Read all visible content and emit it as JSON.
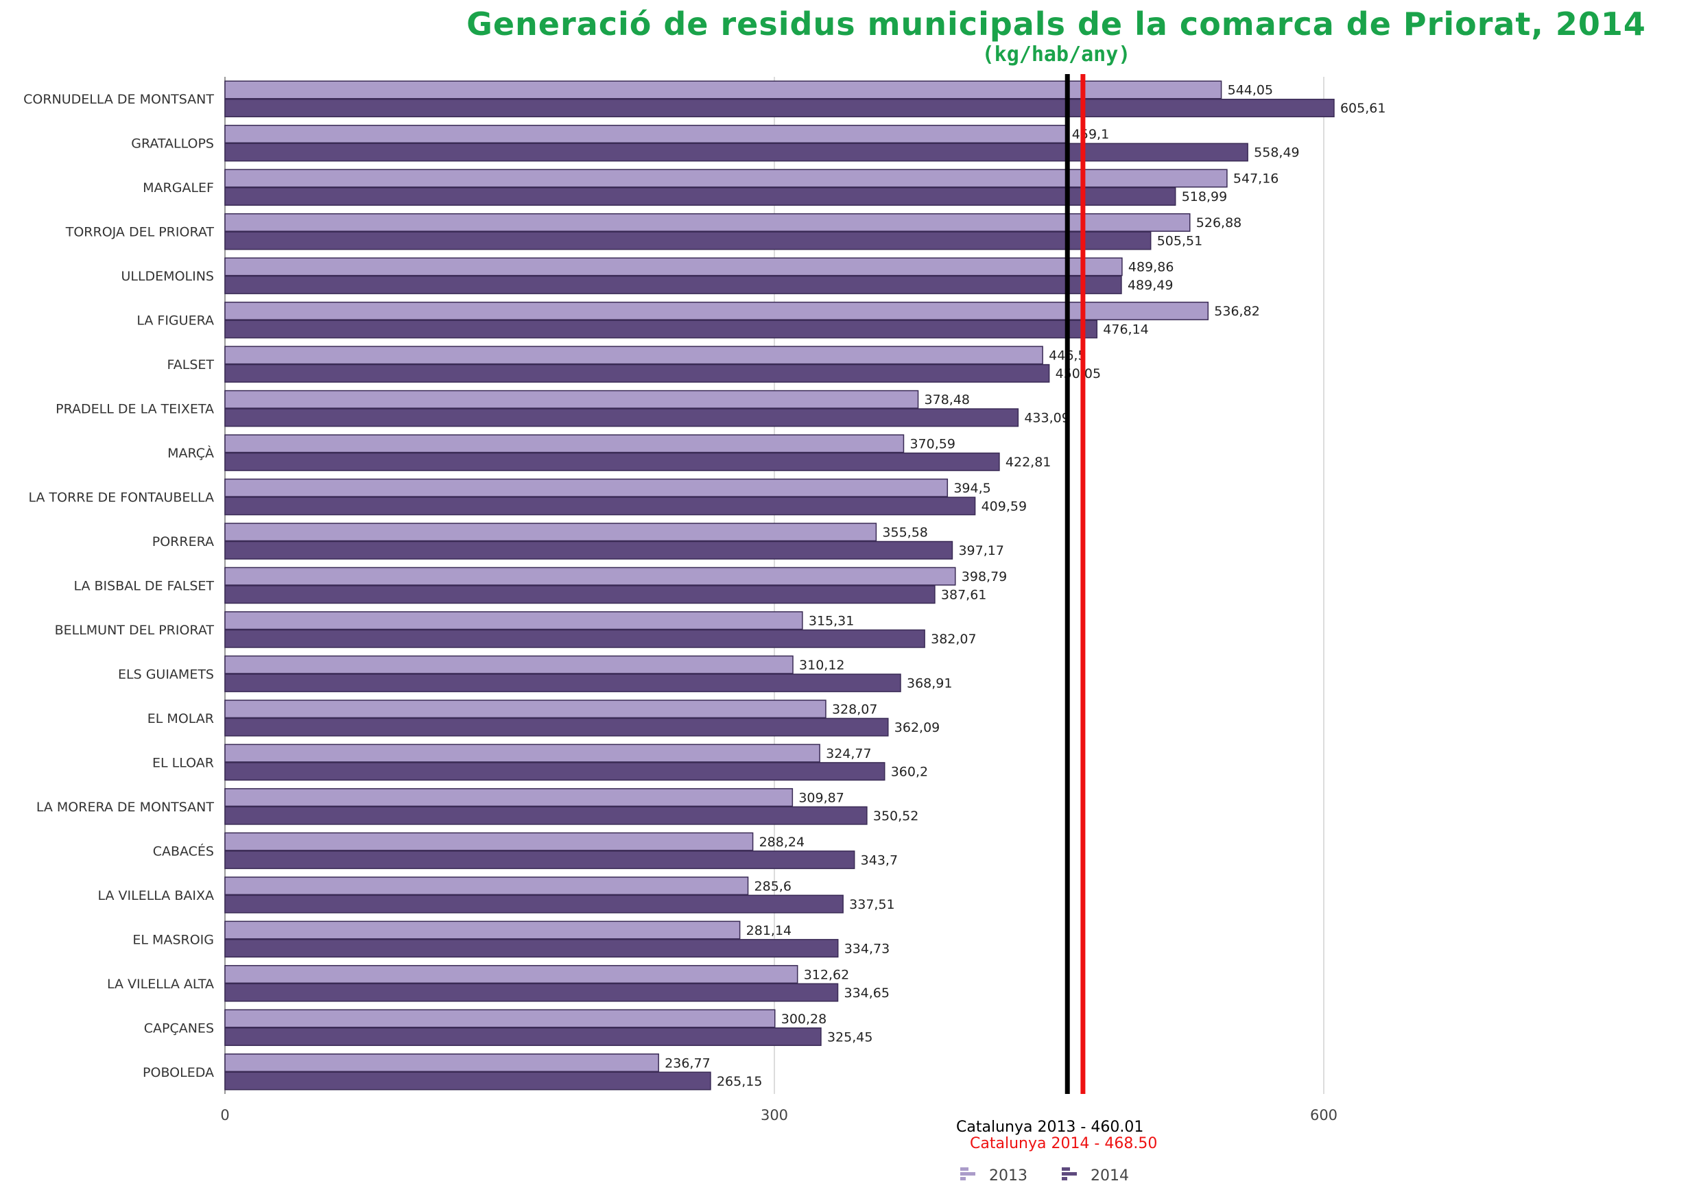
{
  "chart_data": {
    "type": "bar",
    "orientation": "horizontal",
    "title": "Generació de residus municipals de la comarca de Priorat, 2014",
    "subtitle": "(kg/hab/any)",
    "categories": [
      "CORNUDELLA DE MONTSANT",
      "GRATALLOPS",
      "MARGALEF",
      "TORROJA DEL PRIORAT",
      "ULLDEMOLINS",
      "LA FIGUERA",
      "FALSET",
      "PRADELL DE LA TEIXETA",
      "MARÇÀ",
      "LA TORRE DE FONTAUBELLA",
      "PORRERA",
      "LA BISBAL DE FALSET",
      "BELLMUNT DEL PRIORAT",
      "ELS GUIAMETS",
      "EL MOLAR",
      "EL LLOAR",
      "LA MORERA DE MONTSANT",
      "CABACÉS",
      "LA VILELLA BAIXA",
      "EL MASROIG",
      "LA VILELLA ALTA",
      "CAPÇANES",
      "POBOLEDA"
    ],
    "series": [
      {
        "name": "2013",
        "color": "#ab9cc9",
        "values": [
          544.05,
          459.1,
          547.16,
          526.88,
          489.86,
          536.82,
          446.5,
          378.48,
          370.59,
          394.5,
          355.58,
          398.79,
          315.31,
          310.12,
          328.07,
          324.77,
          309.87,
          288.24,
          285.6,
          281.14,
          312.62,
          300.28,
          236.77
        ],
        "labels": [
          "544,05",
          "459,1",
          "547,16",
          "526,88",
          "489,86",
          "536,82",
          "446,5",
          "378,48",
          "370,59",
          "394,5",
          "355,58",
          "398,79",
          "315,31",
          "310,12",
          "328,07",
          "324,77",
          "309,87",
          "288,24",
          "285,6",
          "281,14",
          "312,62",
          "300,28",
          "236,77"
        ]
      },
      {
        "name": "2014",
        "color": "#5e4a7e",
        "values": [
          605.61,
          558.49,
          518.99,
          505.51,
          489.49,
          476.14,
          450.05,
          433.09,
          422.81,
          409.59,
          397.17,
          387.61,
          382.07,
          368.91,
          362.09,
          360.2,
          350.52,
          343.7,
          337.51,
          334.73,
          334.65,
          325.45,
          265.15
        ],
        "labels": [
          "605,61",
          "558,49",
          "518,99",
          "505,51",
          "489,49",
          "476,14",
          "450,05",
          "433,09",
          "422,81",
          "409,59",
          "397,17",
          "387,61",
          "382,07",
          "368,91",
          "362,09",
          "360,2",
          "350,52",
          "343,7",
          "337,51",
          "334,73",
          "334,65",
          "325,45",
          "265,15"
        ]
      }
    ],
    "xlim": [
      0,
      600
    ],
    "xticks": [
      "0",
      "300",
      "600"
    ],
    "grid": true,
    "reference_lines": [
      {
        "value": 460.01,
        "color": "#000000",
        "label": "Catalunya 2013 - 460.01"
      },
      {
        "value": 468.5,
        "color": "#ee1111",
        "label": "Catalunya 2014 - 468.50"
      }
    ],
    "legend": {
      "position": "bottom-center",
      "items": [
        "2013",
        "2014"
      ]
    }
  }
}
